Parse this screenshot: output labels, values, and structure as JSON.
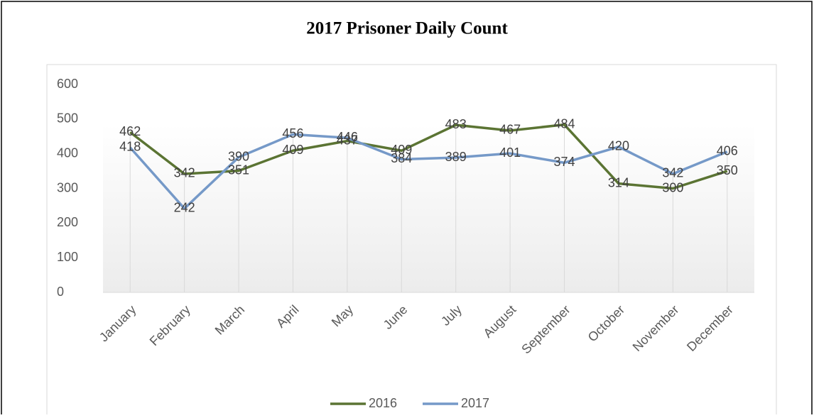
{
  "chart_data": {
    "type": "line",
    "title": "2017 Prisoner Daily Count",
    "categories": [
      "January",
      "February",
      "March",
      "April",
      "May",
      "June",
      "July",
      "August",
      "September",
      "October",
      "November",
      "December"
    ],
    "series": [
      {
        "name": "2016",
        "color": "#5b7433",
        "values": [
          462,
          342,
          351,
          409,
          437,
          409,
          483,
          467,
          484,
          314,
          300,
          350
        ]
      },
      {
        "name": "2017",
        "color": "#7599c8",
        "values": [
          418,
          242,
          390,
          456,
          446,
          384,
          389,
          401,
          374,
          420,
          342,
          406
        ]
      }
    ],
    "ylim": [
      0,
      600
    ],
    "yticks": [
      0,
      100,
      200,
      300,
      400,
      500,
      600
    ],
    "legend": "bottom"
  }
}
